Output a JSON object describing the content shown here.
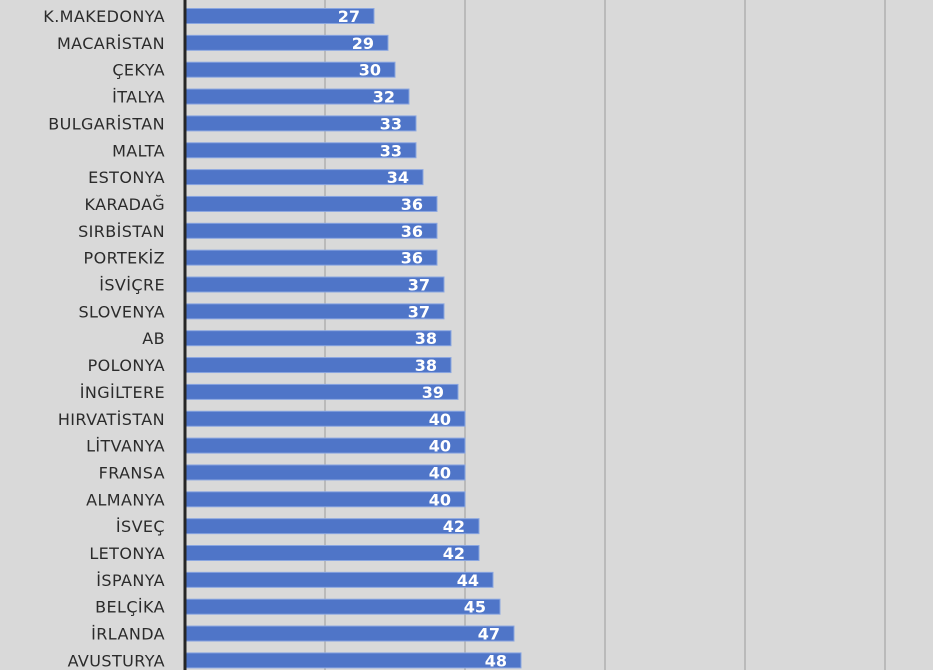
{
  "chart_data": {
    "type": "bar",
    "orientation": "horizontal",
    "categories": [
      "K.MAKEDONYA",
      "MACARİSTAN",
      "ÇEKYA",
      "İTALYA",
      "BULGARİSTAN",
      "MALTA",
      "ESTONYA",
      "KARADAĞ",
      "SIRBİSTAN",
      "PORTEKİZ",
      "İSVİÇRE",
      "SLOVENYA",
      "AB",
      "POLONYA",
      "İNGİLTERE",
      "HIRVATİSTAN",
      "LİTVANYA",
      "FRANSA",
      "ALMANYA",
      "İSVEÇ",
      "LETONYA",
      "İSPANYA",
      "BELÇİKA",
      "İRLANDA",
      "AVUSTURYA"
    ],
    "values": [
      27,
      29,
      30,
      32,
      33,
      33,
      34,
      36,
      36,
      36,
      37,
      37,
      38,
      38,
      39,
      40,
      40,
      40,
      40,
      42,
      42,
      44,
      45,
      47,
      48
    ],
    "xlim": [
      0,
      110
    ],
    "x_gridlines": [
      20,
      40,
      60,
      80,
      100
    ],
    "grid": true,
    "data_labels": true,
    "colors": {
      "bar": "#4f75c8",
      "bar_edge": "#8aa6e0",
      "background": "#d9d9d9",
      "grid": "#a6a6a6",
      "axis": "#262626"
    }
  }
}
